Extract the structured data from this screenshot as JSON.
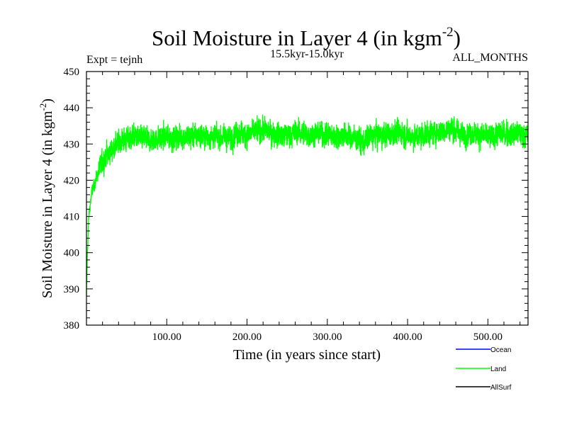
{
  "chart_data": {
    "type": "line",
    "title": {
      "main": "Soil Moisture in Layer 4 (in kgm",
      "sup": "-2",
      "close": ")"
    },
    "subtitle_left": "Expt = tejnh",
    "subtitle_center": "15.5kyr-15.0kyr",
    "subtitle_right": "ALL_MONTHS",
    "xlabel": "Time (in years since start)",
    "ylabel": {
      "main": "Soil Moisture in Layer 4 (in kgm",
      "sup": "-2",
      "close": ")"
    },
    "xlim": [
      0,
      550
    ],
    "ylim": [
      380,
      450
    ],
    "x_ticks": [
      100,
      200,
      300,
      400,
      500
    ],
    "x_tick_labels": [
      "100.00",
      "200.00",
      "300.00",
      "400.00",
      "500.00"
    ],
    "y_ticks": [
      380,
      390,
      400,
      410,
      420,
      430,
      440,
      450
    ],
    "y_tick_labels": [
      "380",
      "390",
      "400",
      "410",
      "420",
      "430",
      "440",
      "450"
    ],
    "legend": [
      {
        "name": "Ocean",
        "color": "#0000ff"
      },
      {
        "name": "Land",
        "color": "#00ff00"
      },
      {
        "name": "AllSurf",
        "color": "#000000"
      }
    ],
    "series": [
      {
        "name": "Land",
        "color": "#00ff00",
        "x": [
          0,
          1,
          2,
          3,
          5,
          7,
          10,
          13,
          16,
          20,
          25,
          30,
          35,
          40,
          45,
          50,
          60,
          70,
          80,
          90,
          100,
          110,
          120,
          130,
          140,
          150,
          160,
          170,
          180,
          185,
          190,
          200,
          210,
          220,
          230,
          240,
          250,
          260,
          270,
          280,
          290,
          300,
          310,
          320,
          330,
          340,
          345,
          350,
          360,
          370,
          380,
          390,
          400,
          410,
          420,
          430,
          440,
          450,
          455,
          460,
          470,
          480,
          490,
          500,
          510,
          520,
          530,
          540,
          545,
          550
        ],
        "y": [
          388,
          398,
          405,
          410,
          414,
          417,
          419,
          421,
          423,
          425,
          427,
          428,
          429.5,
          430.5,
          431,
          431.5,
          432,
          431.5,
          431,
          431.5,
          432,
          431.5,
          432,
          432,
          432.5,
          432,
          432,
          432,
          431.5,
          433,
          433,
          432.5,
          433.5,
          434,
          433,
          432.5,
          432.5,
          433,
          433,
          432.5,
          433,
          432.5,
          432,
          432.5,
          432,
          431,
          430,
          432,
          432.5,
          432.5,
          433,
          433,
          432.5,
          432,
          432.5,
          433,
          433.5,
          434,
          434.5,
          433.5,
          432.5,
          433,
          432.5,
          432,
          432.5,
          433,
          432.5,
          433,
          432.5,
          432.5
        ],
        "amplitude": 4.3,
        "samples_per_year": 12
      },
      {
        "name": "Ocean",
        "color": "#0000ff",
        "x": [],
        "y": []
      },
      {
        "name": "AllSurf",
        "color": "#000000",
        "x": [],
        "y": []
      }
    ]
  }
}
